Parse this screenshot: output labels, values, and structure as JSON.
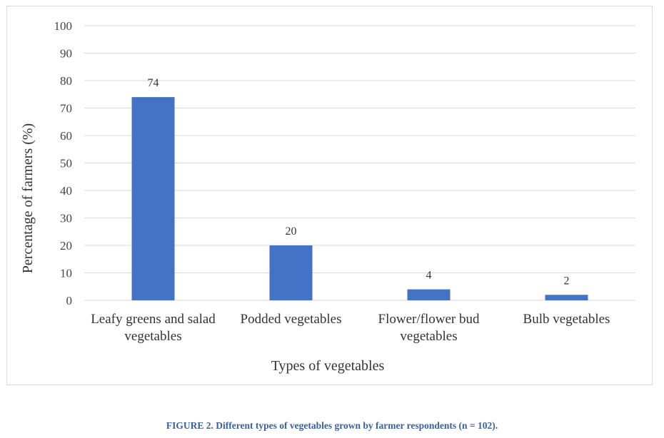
{
  "chart_data": {
    "type": "bar",
    "categories": [
      [
        "Leafy greens and salad",
        "vegetables"
      ],
      [
        "Podded vegetables"
      ],
      [
        "Flower/flower bud",
        "vegetables"
      ],
      [
        "Bulb vegetables"
      ]
    ],
    "values": [
      74,
      20,
      4,
      2
    ],
    "data_labels": [
      "74",
      "20",
      "4",
      "2"
    ],
    "xlabel": "Types of vegetables",
    "ylabel": "Percentage  of  farmers (%)",
    "ylim": [
      0,
      100
    ],
    "yticks": [
      0,
      10,
      20,
      30,
      40,
      50,
      60,
      70,
      80,
      90,
      100
    ],
    "grid": true,
    "legend": "none",
    "bar_color": "#4472c4",
    "grid_color": "#d9d9d9"
  },
  "caption": "FIGURE 2. Different types of vegetables grown by farmer respondents (n = 102)."
}
